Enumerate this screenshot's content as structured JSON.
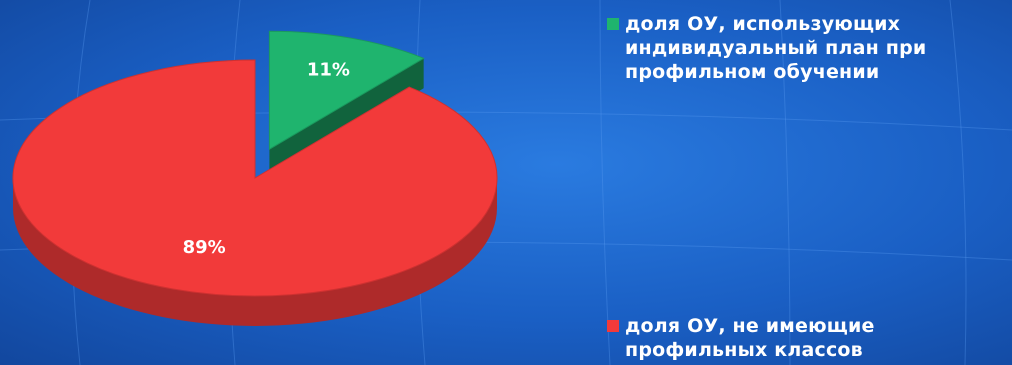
{
  "chart_data": {
    "type": "pie",
    "title": "",
    "categories": [
      "доля ОУ, использующих\nиндивидуальный план при\nпрофильном обучении",
      "доля ОУ, не имеющие\nпрофильных классов"
    ],
    "values": [
      11,
      89
    ],
    "data_labels": [
      "11%",
      "89%"
    ],
    "colors": [
      "#1fb46e",
      "#f23a3a"
    ],
    "exploded": [
      true,
      false
    ],
    "legend_position": "right"
  }
}
